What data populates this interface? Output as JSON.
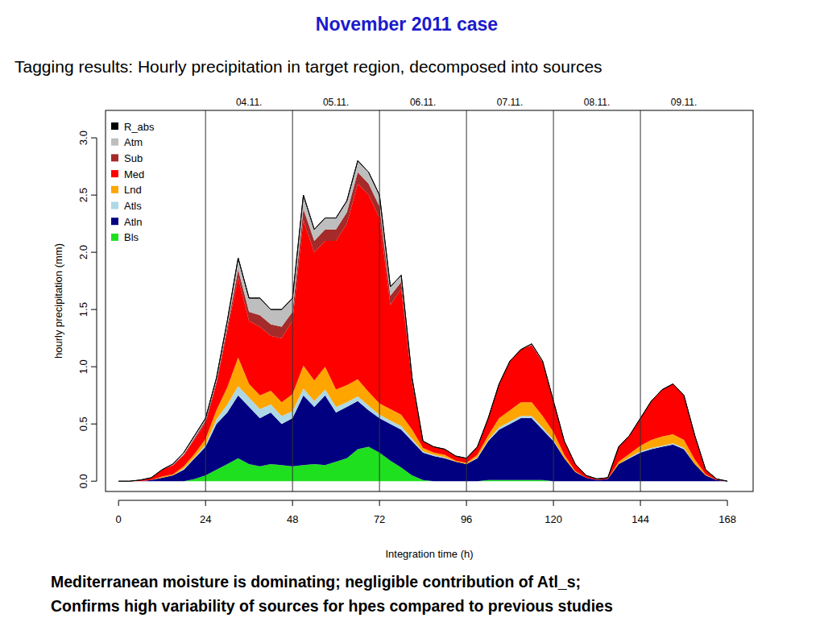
{
  "chart_data": {
    "type": "area",
    "stacked": true,
    "title": "November 2011 case",
    "subtitle": "Tagging results: Hourly precipitation in target region, decomposed into sources",
    "x_label": "Integration time (h)",
    "y_label": "hourly precipitation (mm)",
    "notes": [
      "Mediterranean moisture is dominating; negligible contribution of Atl_s;",
      "Confirms high variability of sources for hpes compared to previous studies"
    ],
    "annotations": [
      {
        "text": "04.11.",
        "x": 36
      },
      {
        "text": "05.11.",
        "x": 60
      },
      {
        "text": "06.11.",
        "x": 84
      },
      {
        "text": "07.11.",
        "x": 108
      },
      {
        "text": "08.11.",
        "x": 132
      },
      {
        "text": "09.11.",
        "x": 156
      }
    ],
    "xlim": [
      -3.6,
      175.1
    ],
    "ylim": [
      -0.09,
      3.24
    ],
    "xticks": [
      0,
      24,
      48,
      72,
      96,
      120,
      144,
      168
    ],
    "yticks": [
      {
        "value": 0,
        "label": "0.0"
      },
      0.5,
      {
        "value": 1,
        "label": "1.0"
      },
      1.5,
      {
        "value": 2,
        "label": "2.0"
      },
      2.5,
      {
        "value": 3,
        "label": "3.0"
      }
    ],
    "grid": "x",
    "legend": "top-left",
    "x": [
      0,
      3,
      6,
      9,
      12,
      15,
      18,
      21,
      24,
      27,
      30,
      33,
      36,
      39,
      42,
      45,
      48,
      51,
      54,
      57,
      60,
      63,
      66,
      69,
      72,
      75,
      78,
      81,
      84,
      87,
      90,
      93,
      96,
      99,
      102,
      105,
      108,
      111,
      114,
      117,
      120,
      123,
      126,
      129,
      132,
      135,
      138,
      141,
      144,
      147,
      150,
      153,
      156,
      159,
      162,
      165,
      168
    ],
    "series": [
      {
        "name": "Bls",
        "color": "#1fe01f",
        "values": [
          0,
          0,
          0,
          0,
          0,
          0,
          0,
          0.02,
          0.05,
          0.1,
          0.15,
          0.2,
          0.15,
          0.13,
          0.15,
          0.14,
          0.13,
          0.14,
          0.15,
          0.14,
          0.17,
          0.2,
          0.28,
          0.3,
          0.25,
          0.18,
          0.12,
          0.05,
          0.01,
          0,
          0,
          0,
          0,
          0,
          0.01,
          0.01,
          0.01,
          0.01,
          0.01,
          0.01,
          0,
          0,
          0,
          0,
          0,
          0,
          0,
          0,
          0,
          0,
          0,
          0,
          0,
          0,
          0,
          0,
          0
        ]
      },
      {
        "name": "Atln",
        "color": "#000080",
        "values": [
          0,
          0,
          0,
          0.01,
          0.03,
          0.05,
          0.1,
          0.18,
          0.25,
          0.4,
          0.45,
          0.55,
          0.5,
          0.42,
          0.45,
          0.36,
          0.42,
          0.61,
          0.5,
          0.61,
          0.43,
          0.45,
          0.42,
          0.32,
          0.3,
          0.32,
          0.33,
          0.3,
          0.24,
          0.22,
          0.2,
          0.17,
          0.15,
          0.2,
          0.34,
          0.44,
          0.49,
          0.54,
          0.54,
          0.44,
          0.35,
          0.2,
          0.08,
          0.03,
          0.01,
          0.02,
          0.15,
          0.2,
          0.25,
          0.28,
          0.3,
          0.32,
          0.28,
          0.15,
          0.05,
          0.01,
          0
        ]
      },
      {
        "name": "Atls",
        "color": "#add8e6",
        "values": [
          0,
          0,
          0,
          0,
          0,
          0,
          0.01,
          0.01,
          0.02,
          0.04,
          0.07,
          0.08,
          0.08,
          0.08,
          0.07,
          0.07,
          0.06,
          0.06,
          0.05,
          0.05,
          0.05,
          0.04,
          0.04,
          0.04,
          0.03,
          0.03,
          0.03,
          0.02,
          0.01,
          0.01,
          0.01,
          0,
          0,
          0.01,
          0.01,
          0.02,
          0.02,
          0.02,
          0.02,
          0.02,
          0.01,
          0,
          0,
          0,
          0,
          0,
          0,
          0.01,
          0.01,
          0.01,
          0.01,
          0.01,
          0.01,
          0,
          0,
          0,
          0
        ]
      },
      {
        "name": "Lnd",
        "color": "#ffa500",
        "values": [
          0,
          0,
          0,
          0,
          0.01,
          0.01,
          0.02,
          0.03,
          0.05,
          0.08,
          0.15,
          0.25,
          0.12,
          0.12,
          0.12,
          0.12,
          0.15,
          0.2,
          0.18,
          0.2,
          0.15,
          0.15,
          0.15,
          0.12,
          0.1,
          0.1,
          0.1,
          0.08,
          0.03,
          0.02,
          0.02,
          0.01,
          0.01,
          0.02,
          0.04,
          0.08,
          0.1,
          0.12,
          0.12,
          0.1,
          0.07,
          0.03,
          0.01,
          0,
          0,
          0,
          0.02,
          0.03,
          0.05,
          0.07,
          0.08,
          0.08,
          0.07,
          0.04,
          0.01,
          0,
          0
        ]
      },
      {
        "name": "Med",
        "color": "#ff0000",
        "values": [
          0,
          0,
          0.01,
          0.02,
          0.06,
          0.08,
          0.1,
          0.13,
          0.14,
          0.23,
          0.5,
          0.7,
          0.55,
          0.6,
          0.48,
          0.56,
          0.64,
          1.27,
          1.12,
          1.1,
          1.3,
          1.41,
          1.71,
          1.72,
          1.62,
          0.91,
          1.1,
          0.41,
          0.06,
          0.05,
          0.05,
          0.04,
          0.04,
          0.07,
          0.15,
          0.3,
          0.43,
          0.46,
          0.5,
          0.47,
          0.27,
          0.12,
          0.06,
          0.02,
          0.01,
          0.01,
          0.13,
          0.16,
          0.24,
          0.34,
          0.41,
          0.44,
          0.39,
          0.21,
          0.04,
          0.01,
          0
        ]
      },
      {
        "name": "Sub",
        "color": "#a52a2a",
        "values": [
          0,
          0,
          0,
          0,
          0,
          0,
          0,
          0.01,
          0.02,
          0.02,
          0.03,
          0.07,
          0.08,
          0.1,
          0.1,
          0.1,
          0.08,
          0.1,
          0.1,
          0.1,
          0.1,
          0.1,
          0.1,
          0.1,
          0.1,
          0.08,
          0.06,
          0.02,
          0,
          0,
          0,
          0,
          0,
          0,
          0,
          0,
          0,
          0,
          0,
          0,
          0,
          0,
          0,
          0,
          0,
          0,
          0,
          0,
          0,
          0,
          0,
          0,
          0,
          0,
          0,
          0,
          0
        ]
      },
      {
        "name": "Atm",
        "color": "#bebebe",
        "values": [
          0,
          0,
          0,
          0,
          0,
          0.01,
          0.02,
          0.02,
          0.02,
          0.03,
          0.05,
          0.1,
          0.12,
          0.15,
          0.13,
          0.15,
          0.12,
          0.12,
          0.1,
          0.1,
          0.1,
          0.1,
          0.1,
          0.1,
          0.1,
          0.08,
          0.06,
          0.02,
          0,
          0,
          0,
          0,
          0,
          0,
          0,
          0,
          0,
          0,
          0.01,
          0.01,
          0,
          0,
          0,
          0,
          0,
          0,
          0,
          0,
          0,
          0,
          0,
          0,
          0,
          0,
          0,
          0,
          0
        ]
      },
      {
        "name": "R_abs",
        "color": "#000000",
        "values": [
          0,
          0,
          0,
          0,
          0,
          0,
          0,
          0,
          0,
          0,
          0,
          0,
          0,
          0,
          0,
          0,
          0,
          0,
          0,
          0,
          0,
          0,
          0,
          0,
          0,
          0,
          0,
          0,
          0,
          0,
          0,
          0,
          0,
          0,
          0,
          0,
          0,
          0,
          0,
          0,
          0,
          0,
          0,
          0,
          0,
          0,
          0,
          0,
          0,
          0,
          0,
          0,
          0,
          0,
          0,
          0,
          0
        ]
      }
    ]
  }
}
